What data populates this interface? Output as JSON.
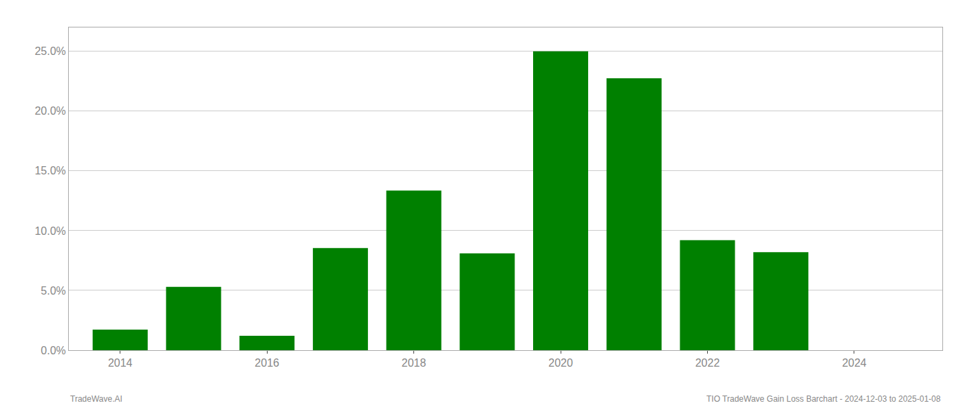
{
  "chart_data": {
    "type": "bar",
    "title": "TIO TradeWave Gain Loss Barchart - 2024-12-03 to 2025-01-08",
    "annotations": [
      "TradeWave.AI"
    ],
    "x": [
      2014,
      2015,
      2016,
      2017,
      2018,
      2019,
      2020,
      2021,
      2022,
      2023
    ],
    "values": [
      1.72,
      5.3,
      1.2,
      8.55,
      13.35,
      8.1,
      25.0,
      22.75,
      9.2,
      8.2
    ],
    "color": "#008000",
    "xlim": [
      2013.3,
      2025.2
    ],
    "xticks": [
      2014,
      2016,
      2018,
      2020,
      2022,
      2024
    ],
    "ylim": [
      0,
      27
    ],
    "yticks": [
      {
        "value": 0.0,
        "label": "0.0%"
      },
      {
        "value": 5.0,
        "label": "5.0%"
      },
      {
        "value": 10.0,
        "label": "10.0%"
      },
      {
        "value": 15.0,
        "label": "15.0%"
      },
      {
        "value": 20.0,
        "label": "20.0%"
      },
      {
        "value": 25.0,
        "label": "25.0%"
      }
    ],
    "grid": true
  }
}
